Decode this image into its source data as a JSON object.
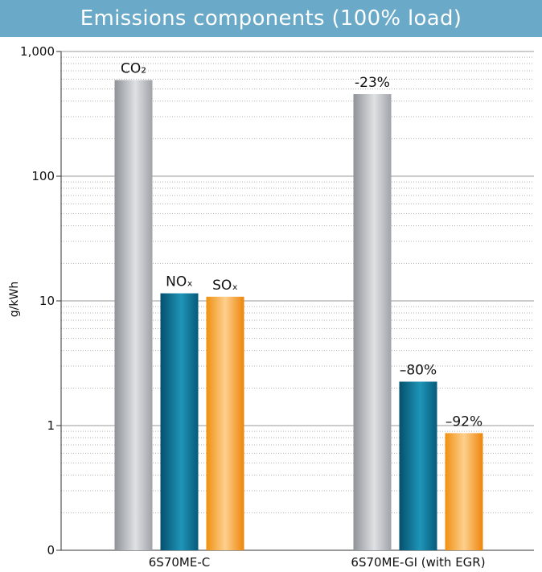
{
  "chart_data": {
    "type": "bar",
    "title": "Emissions components (100% load)",
    "ylabel": "g/kWh",
    "xlabel": "",
    "scale": "log",
    "ylim": [
      0.1,
      1000
    ],
    "yticks": [
      {
        "value": 1000,
        "label": "1,000"
      },
      {
        "value": 100,
        "label": "100"
      },
      {
        "value": 10,
        "label": "10"
      },
      {
        "value": 1,
        "label": "1"
      },
      {
        "value": 0.1,
        "label": "0"
      }
    ],
    "grid": true,
    "categories": [
      "6S70ME-C",
      "6S70ME-GI (with EGR)"
    ],
    "series": [
      {
        "name": "CO₂",
        "color": "#a9adb2",
        "values": [
          590,
          455
        ],
        "labels": [
          "CO₂",
          "-23%"
        ]
      },
      {
        "name": "NOₓ",
        "color": "#0a6f92",
        "values": [
          11.5,
          2.25
        ],
        "labels": [
          "NOₓ",
          "–80%"
        ]
      },
      {
        "name": "SOₓ",
        "color": "#f08c10",
        "values": [
          10.8,
          0.87
        ],
        "labels": [
          "SOₓ",
          "–92%"
        ]
      }
    ],
    "colors": {
      "title_bar": "#6aa9c7",
      "grid": "#9a9a9a",
      "axis": "#333333"
    }
  }
}
